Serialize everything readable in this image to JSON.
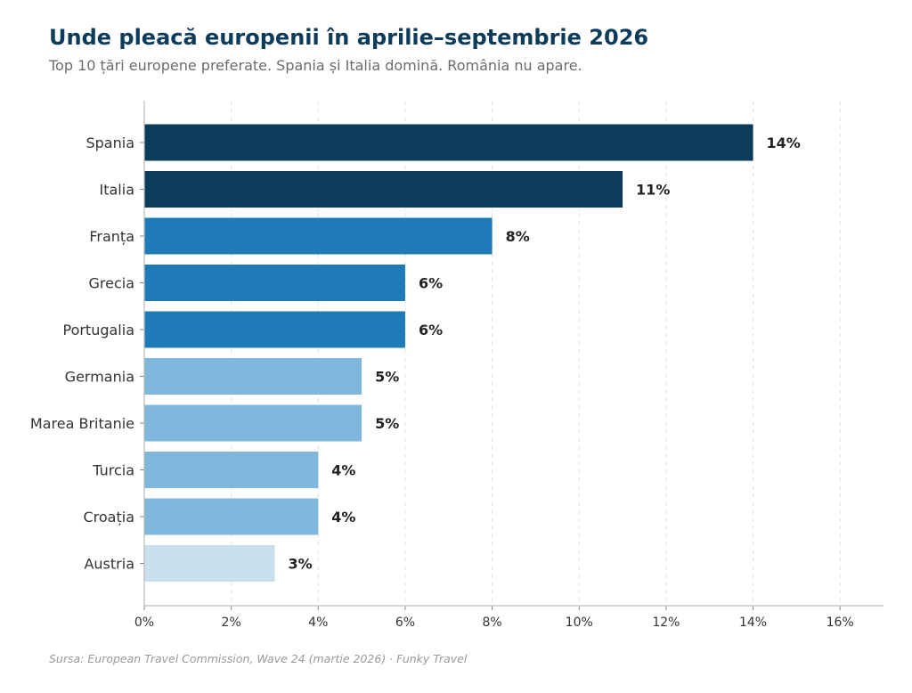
{
  "header": {
    "title": "Unde pleacă europenii în aprilie–septembrie 2026",
    "subtitle": "Top 10 țări europene preferate. Spania și Italia domină. România nu apare."
  },
  "footer": {
    "source": "Sursa: European Travel Commission, Wave 24 (martie 2026)  ·  Funky Travel"
  },
  "chart_data": {
    "type": "bar",
    "orientation": "horizontal",
    "categories": [
      "Spania",
      "Italia",
      "Franța",
      "Grecia",
      "Portugalia",
      "Germania",
      "Marea Britanie",
      "Turcia",
      "Croația",
      "Austria"
    ],
    "values": [
      14,
      11,
      8,
      6,
      6,
      5,
      5,
      4,
      4,
      3
    ],
    "value_labels": [
      "14%",
      "11%",
      "8%",
      "6%",
      "6%",
      "5%",
      "5%",
      "4%",
      "4%",
      "3%"
    ],
    "bar_colors": [
      "#0d3b5b",
      "#0d3b5b",
      "#1f7bb8",
      "#1f7bb8",
      "#1f7bb8",
      "#7fb8dc",
      "#7fb8dc",
      "#7fb8dc",
      "#7fb8dc",
      "#c9dfec"
    ],
    "xlim": [
      0,
      17
    ],
    "xticks": [
      0,
      2,
      4,
      6,
      8,
      10,
      12,
      14,
      16
    ],
    "xtick_labels": [
      "0%",
      "2%",
      "4%",
      "6%",
      "8%",
      "10%",
      "12%",
      "14%",
      "16%"
    ],
    "xlabel": "",
    "ylabel": "",
    "grid": "vertical dashed",
    "legend": "none"
  }
}
